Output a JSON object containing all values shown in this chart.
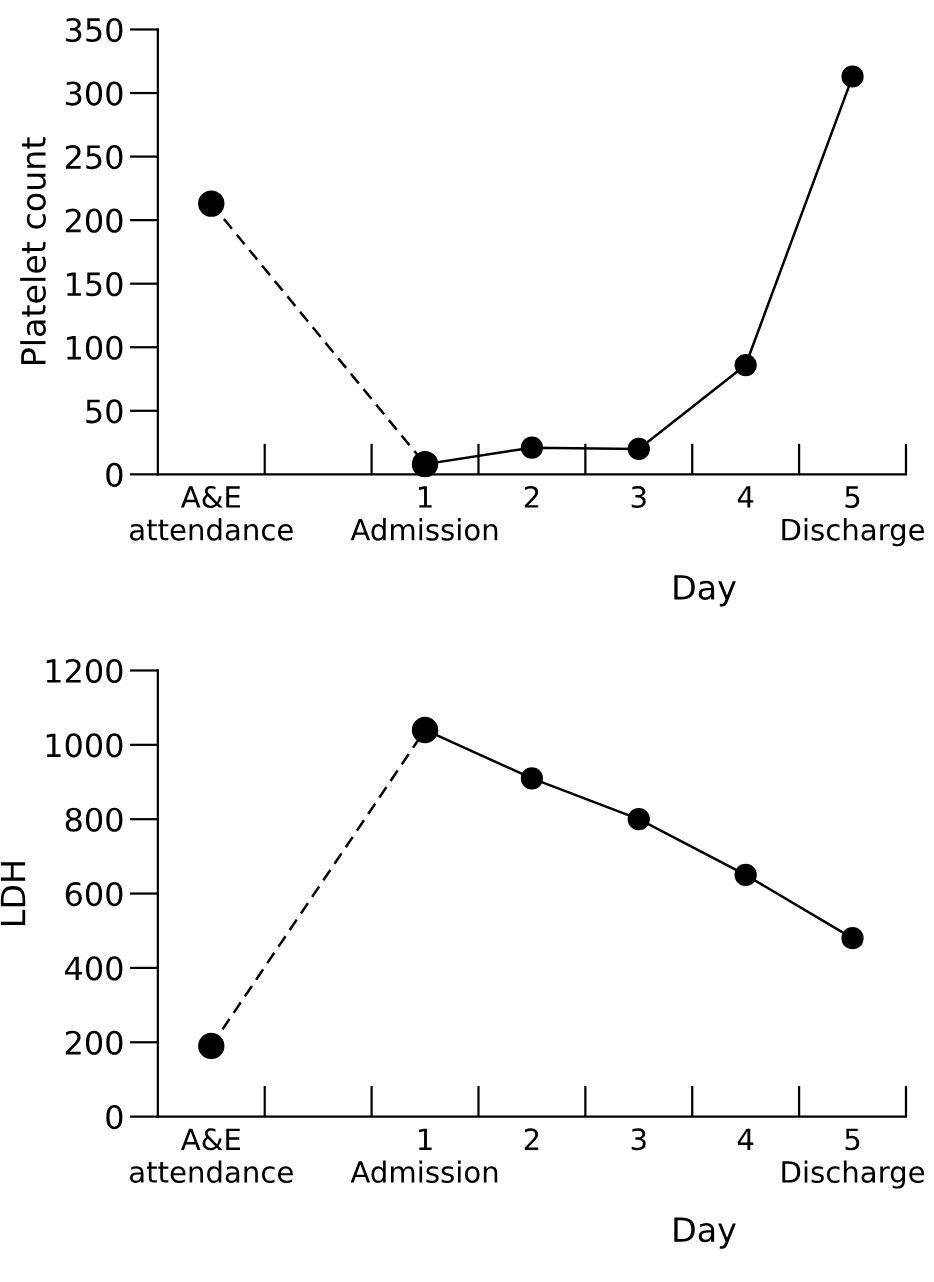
{
  "chart_data": [
    {
      "type": "line",
      "xlabel": "Day",
      "ylabel": "Platelet count",
      "categories": [
        "A&E\nattendance",
        null,
        "1\nAdmission",
        "2",
        "3",
        "4",
        "5\nDischarge"
      ],
      "series": [
        {
          "color": "#000000",
          "line_style": "dashed",
          "values": [
            213,
            null,
            8,
            null,
            null,
            null,
            null
          ]
        },
        {
          "color": "#000000",
          "line_style": "solid",
          "values": [
            null,
            null,
            8,
            21,
            20,
            86,
            313
          ]
        }
      ],
      "ylim": [
        0,
        350
      ],
      "yticks": [
        0,
        50,
        100,
        150,
        200,
        250,
        300,
        350
      ],
      "marker": "circle",
      "grid": false,
      "legend": false
    },
    {
      "type": "line",
      "xlabel": "Day",
      "ylabel": "LDH",
      "categories": [
        "A&E\nattendance",
        null,
        "1\nAdmission",
        "2",
        "3",
        "4",
        "5\nDischarge"
      ],
      "series": [
        {
          "color": "#000000",
          "line_style": "dashed",
          "values": [
            190,
            null,
            1040,
            null,
            null,
            null,
            null
          ]
        },
        {
          "color": "#000000",
          "line_style": "solid",
          "values": [
            null,
            null,
            1040,
            910,
            800,
            650,
            480
          ]
        }
      ],
      "ylim": [
        0,
        1200
      ],
      "yticks": [
        0,
        200,
        400,
        600,
        800,
        1000,
        1200
      ],
      "marker": "circle",
      "grid": false,
      "legend": false
    }
  ]
}
